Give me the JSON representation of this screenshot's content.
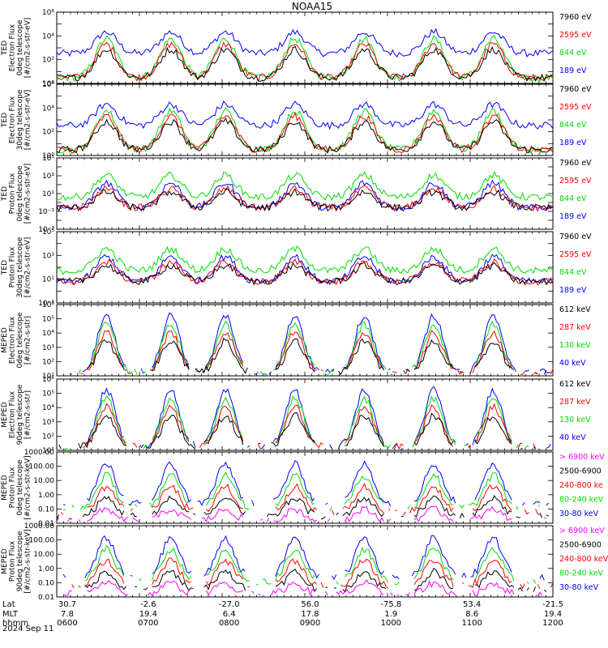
{
  "chart_data": {
    "type": "line",
    "title": "NOAA15",
    "date": "2024 Sep 11",
    "x_rows": [
      {
        "label": "Lat",
        "values": [
          "30.7",
          "-2.6",
          "-27.0",
          "56.0",
          "-75.8",
          "53.4",
          "-21.5"
        ]
      },
      {
        "label": "MLT",
        "values": [
          "7.8",
          "19.4",
          "6.4",
          "17.8",
          "1.9",
          "8.6",
          "19.4"
        ]
      },
      {
        "label": "hhmm",
        "values": [
          "0600",
          "0700",
          "0800",
          "0900",
          "1000",
          "1100",
          "1200"
        ]
      }
    ],
    "xlim": [
      "0600",
      "1200"
    ],
    "y_scale": "log",
    "panels": [
      {
        "ylabel": [
          "TED",
          "Electron Flux",
          "0deg telescope",
          "[#/cm2-s-str-eV]"
        ],
        "ylim": [
          1,
          1000000
        ],
        "ticks": [
          "10⁰",
          "10²",
          "10⁴",
          "10⁶"
        ],
        "legend": [
          {
            "name": "7960 eV",
            "color": "#000000"
          },
          {
            "name": "2595 eV",
            "color": "#ff0000"
          },
          {
            "name": "844 eV",
            "color": "#00dd00"
          },
          {
            "name": "189 eV",
            "color": "#0000ff"
          }
        ]
      },
      {
        "ylabel": [
          "TED",
          "Electron Flux",
          "30deg telescope",
          "[#/cm2-s-str-eV]"
        ],
        "ylim": [
          1,
          1000000
        ],
        "ticks": [
          "10⁰",
          "10²",
          "10⁴",
          "10⁶"
        ],
        "legend": [
          {
            "name": "7960 eV",
            "color": "#000000"
          },
          {
            "name": "2595 eV",
            "color": "#ff0000"
          },
          {
            "name": "844 eV",
            "color": "#00dd00"
          },
          {
            "name": "189 eV",
            "color": "#0000ff"
          }
        ]
      },
      {
        "ylabel": [
          "TED",
          "Proton Flux",
          "0deg telescope",
          "[#/cm2-s-str-eV]"
        ],
        "ylim": [
          0.001,
          100000
        ],
        "ticks": [
          "10⁻³",
          "10⁻¹",
          "10¹",
          "10³",
          "10⁵"
        ],
        "legend": [
          {
            "name": "7960 eV",
            "color": "#000000"
          },
          {
            "name": "2595 eV",
            "color": "#ff0000"
          },
          {
            "name": "844 eV",
            "color": "#00dd00"
          },
          {
            "name": "189 eV",
            "color": "#0000ff"
          }
        ]
      },
      {
        "ylabel": [
          "TED",
          "Proton Flux",
          "30deg telescope",
          "[#/cm2-s-str-eV]"
        ],
        "ylim": [
          0.1,
          100000
        ],
        "ticks": [
          "10⁻¹",
          "10¹",
          "10³",
          "10⁵"
        ],
        "legend": [
          {
            "name": "7960 eV",
            "color": "#000000"
          },
          {
            "name": "2595 eV",
            "color": "#ff0000"
          },
          {
            "name": "844 eV",
            "color": "#00dd00"
          },
          {
            "name": "189 eV",
            "color": "#0000ff"
          }
        ]
      },
      {
        "ylabel": [
          "MEPED",
          "Electron Flux",
          "0deg telescope",
          "[#/cm2-s-str]"
        ],
        "ylim": [
          10,
          1000000
        ],
        "ticks": [
          "10¹",
          "10²",
          "10³",
          "10⁴",
          "10⁵",
          "10⁶"
        ],
        "legend": [
          {
            "name": "612 keV",
            "color": "#000000"
          },
          {
            "name": "287 keV",
            "color": "#ff0000"
          },
          {
            "name": "130 keV",
            "color": "#00dd00"
          },
          {
            "name": "40 keV",
            "color": "#0000ff"
          }
        ]
      },
      {
        "ylabel": [
          "MEPED",
          "Electron Flux",
          "90deg telescope",
          "[#/cm2-s-str]"
        ],
        "ylim": [
          10,
          1000000
        ],
        "ticks": [
          "10¹",
          "10²",
          "10³",
          "10⁴",
          "10⁵",
          "10⁶"
        ],
        "legend": [
          {
            "name": "612 keV",
            "color": "#000000"
          },
          {
            "name": "287 keV",
            "color": "#ff0000"
          },
          {
            "name": "130 keV",
            "color": "#00dd00"
          },
          {
            "name": "40 keV",
            "color": "#0000ff"
          }
        ]
      },
      {
        "ylabel": [
          "MEPED",
          "Proton Flux",
          "0deg telescope",
          "[#/cm2-s-str-keV]"
        ],
        "ylim": [
          0.01,
          1000
        ],
        "ticks": [
          "0.01",
          "0.10",
          "1.00",
          "10.00",
          "100.00",
          "1000.00"
        ],
        "legend": [
          {
            "name": "> 6900 keV",
            "color": "#ff00ff"
          },
          {
            "name": "2500-6900",
            "color": "#000000"
          },
          {
            "name": "240-800 ke",
            "color": "#ff0000"
          },
          {
            "name": "80-240 keV",
            "color": "#00dd00"
          },
          {
            "name": "30-80 keV",
            "color": "#0000ff"
          }
        ]
      },
      {
        "ylabel": [
          "MEPED",
          "Proton Flux",
          "90deg telescope",
          "[#/cm2-s-str-keV]"
        ],
        "ylim": [
          0.01,
          1000
        ],
        "ticks": [
          "0.01",
          "0.10",
          "1.00",
          "10.00",
          "100.00",
          "1000.00"
        ],
        "legend": [
          {
            "name": "> 6900 keV",
            "color": "#ff00ff"
          },
          {
            "name": "2500-6900",
            "color": "#000000"
          },
          {
            "name": "240-800 keV",
            "color": "#ff0000"
          },
          {
            "name": "80-240 keV",
            "color": "#00dd00"
          },
          {
            "name": "30-80 keV",
            "color": "#0000ff"
          }
        ]
      }
    ]
  }
}
